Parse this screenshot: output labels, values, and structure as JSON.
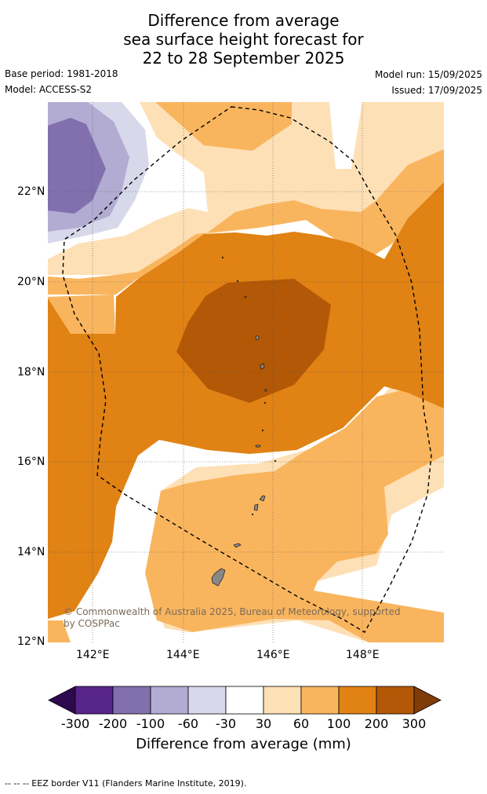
{
  "title_lines": [
    "Difference from average",
    "sea surface height forecast for",
    "22 to 28 September 2025"
  ],
  "base_period": "Base period: 1981-2018",
  "model": "Model: ACCESS-S2",
  "model_run": "Model run: 15/09/2025",
  "issued": "Issued: 17/09/2025",
  "lat_labels": [
    "22°N",
    "20°N",
    "18°N",
    "16°N",
    "14°N",
    "12°N"
  ],
  "lon_labels": [
    "142°E",
    "144°E",
    "146°E",
    "148°E"
  ],
  "copyright_line1": "© Commonwealth of Australia 2025, Bureau of Meteorology, supported",
  "copyright_line2": "by COSPPac",
  "colorbar": {
    "ticks": [
      "-300",
      "-200",
      "-100",
      "-60",
      "-30",
      "30",
      "60",
      "100",
      "200",
      "300"
    ],
    "label": "Difference from average (mm)",
    "colors": [
      "#2d0a4e",
      "#57248a",
      "#8170ad",
      "#b2abd2",
      "#d8d8eb",
      "#ffffff",
      "#fee0b6",
      "#f9b55e",
      "#e08214",
      "#b35806",
      "#7f3b08"
    ]
  },
  "footnote": "--  --  -- EEZ border V11 (Flanders Marine Institute, 2019)."
}
